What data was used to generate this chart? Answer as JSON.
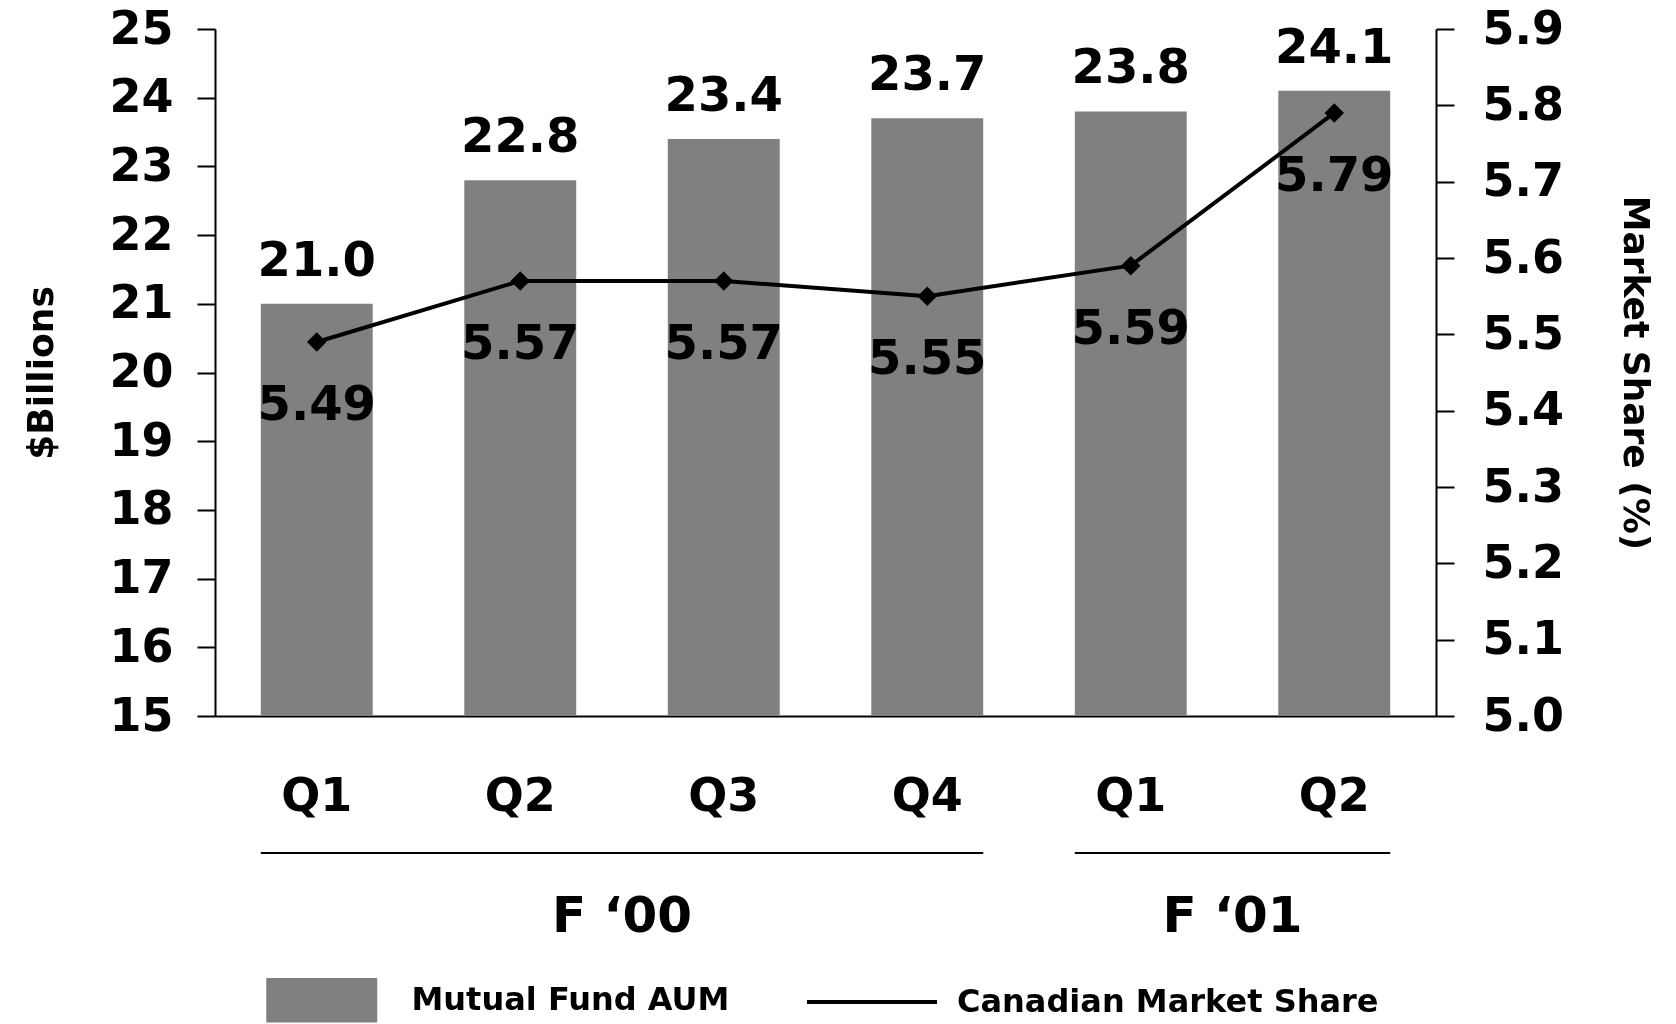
{
  "chart_data": {
    "type": "bar",
    "categories": [
      "Q1",
      "Q2",
      "Q3",
      "Q4",
      "Q1",
      "Q2"
    ],
    "series": [
      {
        "name": "Mutual Fund AUM",
        "color": "#808080",
        "values": [
          21.0,
          22.8,
          23.4,
          23.7,
          23.8,
          24.1
        ],
        "value_labels": [
          "21.0",
          "22.8",
          "23.4",
          "23.7",
          "23.8",
          "24.1"
        ]
      },
      {
        "name": "Canadian Market Share",
        "type": "line",
        "axis": "y2",
        "color": "#000000",
        "values": [
          5.49,
          5.57,
          5.57,
          5.55,
          5.59,
          5.79
        ],
        "value_labels": [
          "5.49",
          "5.57",
          "5.57",
          "5.55",
          "5.59",
          "5.79"
        ]
      }
    ],
    "ylabel": "$Billions",
    "y2label": "Market Share (%)",
    "ylim": [
      15,
      25
    ],
    "yticks": [
      15,
      16,
      17,
      18,
      19,
      20,
      21,
      22,
      23,
      24,
      25
    ],
    "y2lim": [
      5.0,
      5.9
    ],
    "y2ticks": [
      {
        "value": 5.0,
        "label": "5.0"
      },
      5.1,
      5.2,
      5.3,
      5.4,
      5.5,
      5.6,
      5.7,
      5.8,
      5.9
    ],
    "annotations": [
      "F ‘00",
      "F ‘01"
    ],
    "legend": "bottom",
    "marker": "diamond",
    "line_style": "solid"
  }
}
